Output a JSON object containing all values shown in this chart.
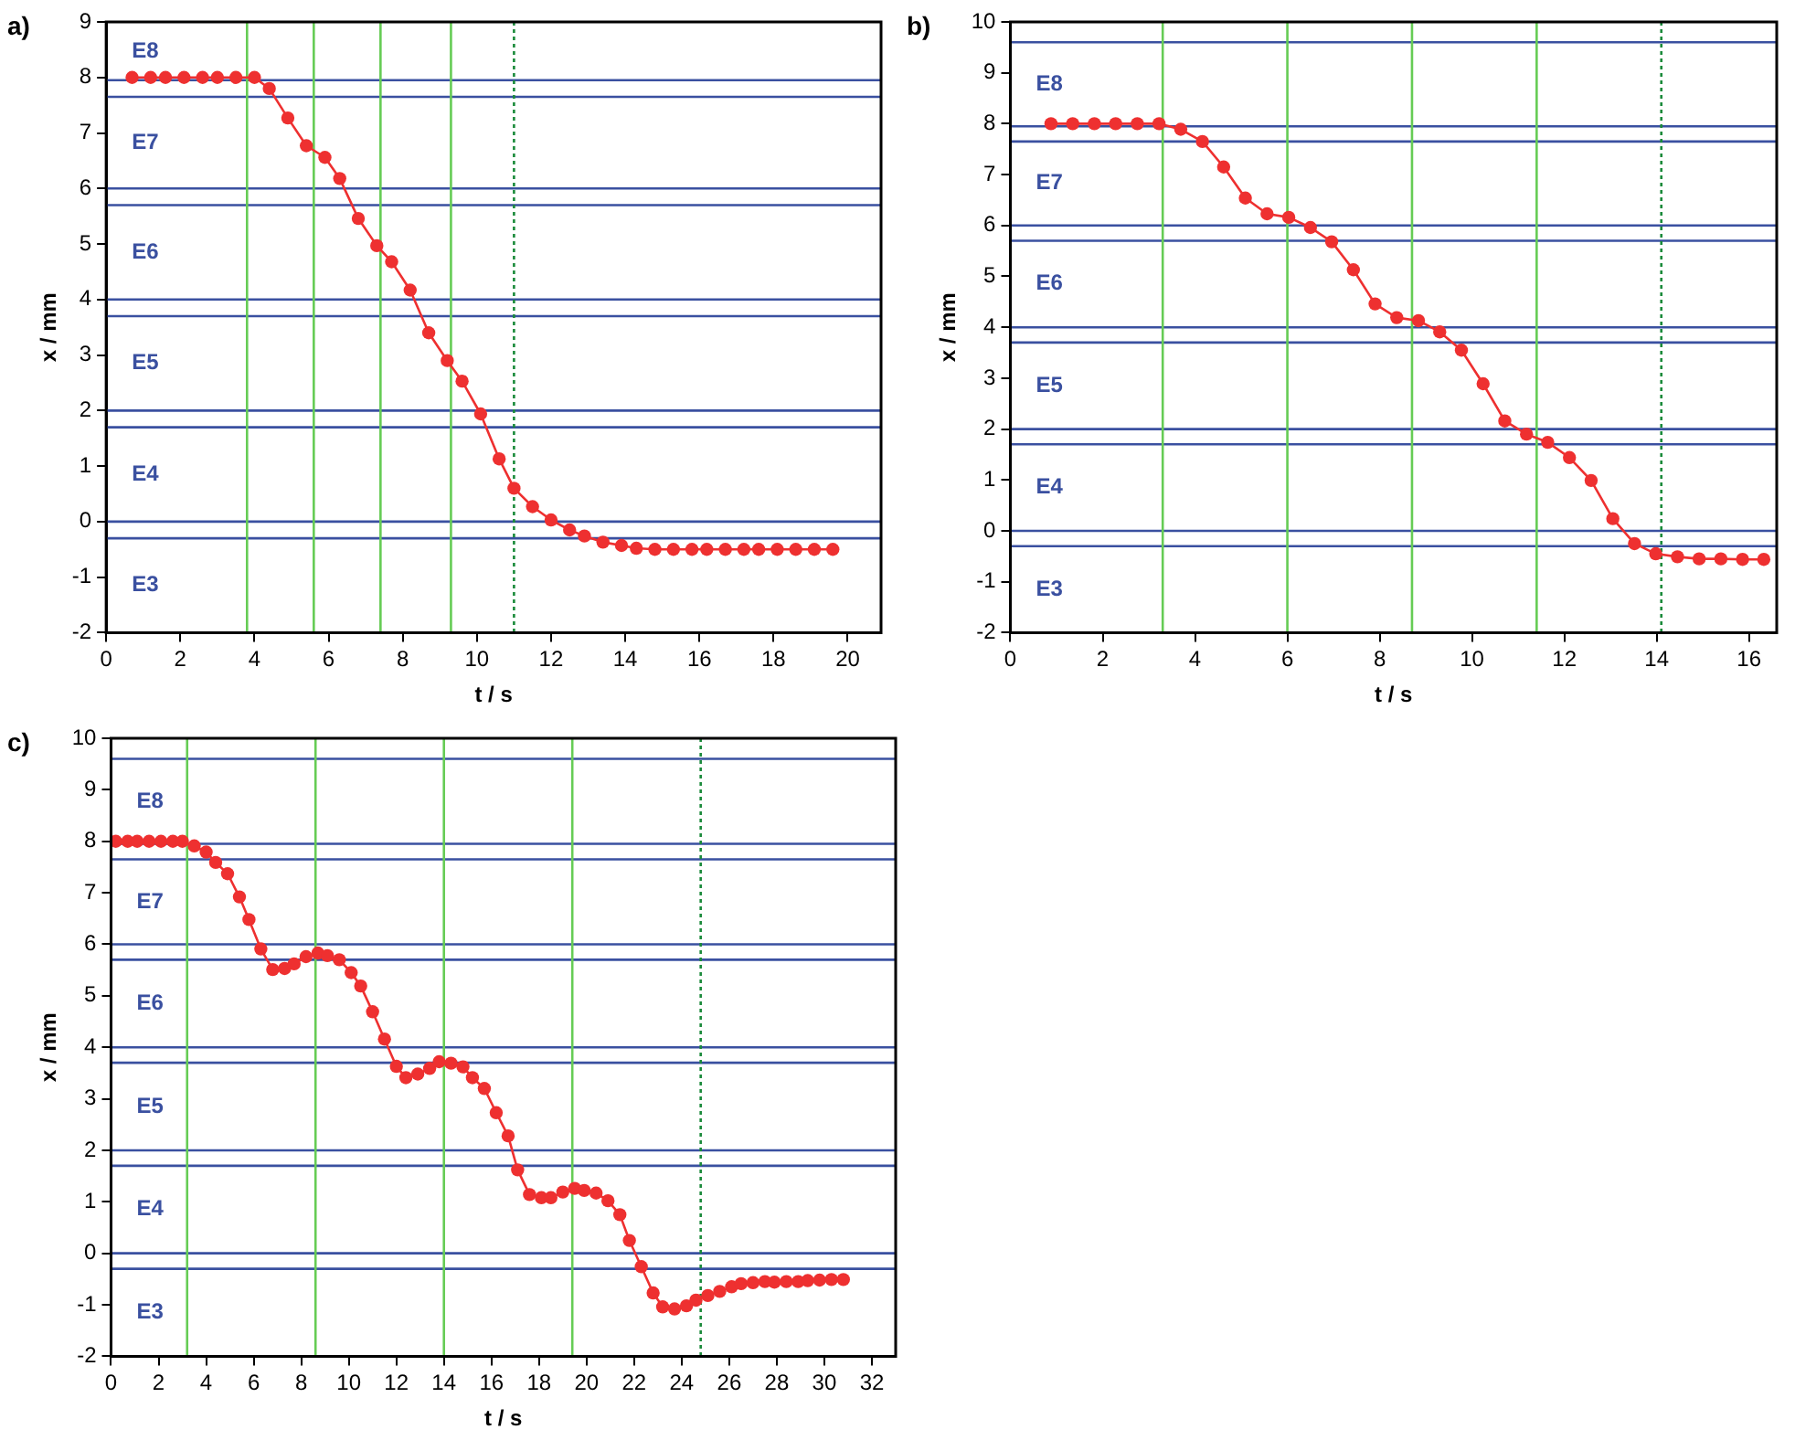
{
  "chart_data": [
    {
      "type": "line",
      "title": "a)",
      "xlabel": "t / s",
      "ylabel": "x / mm",
      "marker": "circle",
      "line_style": "solid",
      "x": [
        0.7,
        1.2,
        1.6,
        2.1,
        2.6,
        3.0,
        3.5,
        4.0,
        4.4,
        4.9,
        5.4,
        5.9,
        6.3,
        6.8,
        7.3,
        7.7,
        8.2,
        8.7,
        9.2,
        9.6,
        10.1,
        10.6,
        11.0,
        11.5,
        12.0,
        12.5,
        12.9,
        13.4,
        13.9,
        14.3,
        14.8,
        15.3,
        15.8,
        16.2,
        16.7,
        17.2,
        17.6,
        18.1,
        18.6,
        19.1,
        19.6
      ],
      "series": [
        {
          "color": "#ee3030",
          "values": [
            8.0,
            8.0,
            8.0,
            8.0,
            8.0,
            8.0,
            8.0,
            8.0,
            7.8,
            7.27,
            6.77,
            6.56,
            6.18,
            5.46,
            4.97,
            4.68,
            4.17,
            3.4,
            2.9,
            2.53,
            1.94,
            1.13,
            0.6,
            0.27,
            0.03,
            -0.15,
            -0.26,
            -0.37,
            -0.43,
            -0.48,
            -0.5,
            -0.5,
            -0.5,
            -0.5,
            -0.5,
            -0.5,
            -0.5,
            -0.5,
            -0.5,
            -0.5,
            -0.5
          ]
        }
      ],
      "xlim": [
        0,
        20.9
      ],
      "xticks": [
        0,
        2,
        4,
        6,
        8,
        10,
        12,
        14,
        16,
        18,
        20
      ],
      "ylim": [
        -2,
        9
      ],
      "yticks": [
        -2,
        -1,
        0,
        1,
        2,
        3,
        4,
        5,
        6,
        7,
        8,
        9
      ],
      "ref_lines": [
        {
          "axis": "y",
          "value": 7.95,
          "color": "#3a50a0"
        },
        {
          "axis": "y",
          "value": 7.65,
          "color": "#3a50a0"
        },
        {
          "axis": "y",
          "value": 6.0,
          "color": "#3a50a0"
        },
        {
          "axis": "y",
          "value": 5.7,
          "color": "#3a50a0"
        },
        {
          "axis": "y",
          "value": 4.0,
          "color": "#3a50a0"
        },
        {
          "axis": "y",
          "value": 3.7,
          "color": "#3a50a0"
        },
        {
          "axis": "y",
          "value": 2.0,
          "color": "#3a50a0"
        },
        {
          "axis": "y",
          "value": 1.7,
          "color": "#3a50a0"
        },
        {
          "axis": "y",
          "value": 0,
          "color": "#3a50a0"
        },
        {
          "axis": "y",
          "value": -0.3,
          "color": "#3a50a0"
        },
        {
          "axis": "x",
          "value": 3.8,
          "color": "#66cc55"
        },
        {
          "axis": "x",
          "value": 5.6,
          "color": "#66cc55"
        },
        {
          "axis": "x",
          "value": 7.4,
          "color": "#66cc55"
        },
        {
          "axis": "x",
          "value": 9.3,
          "color": "#66cc55"
        },
        {
          "axis": "x",
          "value": 11.0,
          "color": "#1a8a3a",
          "line_style": "dotted"
        }
      ],
      "annotations": [
        "E8",
        "E7",
        "E6",
        "E5",
        "E4",
        "E3"
      ]
    },
    {
      "type": "line",
      "title": "b)",
      "xlabel": "t / s",
      "ylabel": "x / mm",
      "marker": "circle",
      "line_style": "solid",
      "x": [
        0.88,
        1.35,
        1.82,
        2.28,
        2.75,
        3.22,
        3.69,
        4.16,
        4.62,
        5.09,
        5.56,
        6.03,
        6.5,
        6.96,
        7.43,
        7.9,
        8.37,
        8.84,
        9.3,
        9.77,
        10.24,
        10.71,
        11.18,
        11.64,
        12.11,
        12.58,
        13.05,
        13.52,
        13.98,
        14.45,
        14.92,
        15.39,
        15.86,
        16.32
      ],
      "series": [
        {
          "color": "#ee3030",
          "values": [
            8.0,
            8.0,
            8.0,
            8.0,
            8.0,
            8.0,
            7.89,
            7.65,
            7.15,
            6.54,
            6.23,
            6.16,
            5.96,
            5.68,
            5.13,
            4.46,
            4.19,
            4.13,
            3.91,
            3.55,
            2.89,
            2.16,
            1.9,
            1.74,
            1.44,
            0.99,
            0.24,
            -0.25,
            -0.45,
            -0.51,
            -0.55,
            -0.55,
            -0.56,
            -0.56
          ]
        }
      ],
      "xlim": [
        0,
        16.6
      ],
      "xticks": [
        0,
        2,
        4,
        6,
        8,
        10,
        12,
        14,
        16
      ],
      "ylim": [
        -2,
        10
      ],
      "yticks": [
        -2,
        -1,
        0,
        1,
        2,
        3,
        4,
        5,
        6,
        7,
        8,
        9,
        10
      ],
      "ref_lines": [
        {
          "axis": "y",
          "value": 9.6,
          "color": "#3a50a0"
        },
        {
          "axis": "y",
          "value": 7.95,
          "color": "#3a50a0"
        },
        {
          "axis": "y",
          "value": 7.65,
          "color": "#3a50a0"
        },
        {
          "axis": "y",
          "value": 6.0,
          "color": "#3a50a0"
        },
        {
          "axis": "y",
          "value": 5.7,
          "color": "#3a50a0"
        },
        {
          "axis": "y",
          "value": 4.0,
          "color": "#3a50a0"
        },
        {
          "axis": "y",
          "value": 3.7,
          "color": "#3a50a0"
        },
        {
          "axis": "y",
          "value": 2.0,
          "color": "#3a50a0"
        },
        {
          "axis": "y",
          "value": 1.7,
          "color": "#3a50a0"
        },
        {
          "axis": "y",
          "value": 0,
          "color": "#3a50a0"
        },
        {
          "axis": "y",
          "value": -0.3,
          "color": "#3a50a0"
        },
        {
          "axis": "x",
          "value": 3.3,
          "color": "#66cc55"
        },
        {
          "axis": "x",
          "value": 6.0,
          "color": "#66cc55"
        },
        {
          "axis": "x",
          "value": 8.7,
          "color": "#66cc55"
        },
        {
          "axis": "x",
          "value": 11.4,
          "color": "#66cc55"
        },
        {
          "axis": "x",
          "value": 14.1,
          "color": "#1a8a3a",
          "line_style": "dotted"
        }
      ],
      "annotations": [
        "E8",
        "E7",
        "E6",
        "E5",
        "E4",
        "E3"
      ]
    },
    {
      "type": "line",
      "title": "c)",
      "xlabel": "t / s",
      "ylabel": "x / mm",
      "marker": "circle",
      "line_style": "solid",
      "x": [
        0.2,
        0.7,
        1.1,
        1.6,
        2.1,
        2.6,
        3.0,
        3.5,
        4.0,
        4.4,
        4.9,
        5.4,
        5.8,
        6.3,
        6.8,
        7.3,
        7.7,
        8.2,
        8.7,
        9.1,
        9.6,
        10.1,
        10.5,
        11.0,
        11.5,
        12.0,
        12.4,
        12.9,
        13.4,
        13.8,
        14.3,
        14.8,
        15.2,
        15.7,
        16.2,
        16.7,
        17.1,
        17.6,
        18.1,
        18.5,
        19.0,
        19.5,
        19.9,
        20.4,
        20.9,
        21.4,
        21.8,
        22.3,
        22.8,
        23.2,
        23.7,
        24.2,
        24.6,
        25.1,
        25.6,
        26.1,
        26.5,
        27.0,
        27.5,
        27.9,
        28.4,
        28.9,
        29.3,
        29.8,
        30.3,
        30.8
      ],
      "series": [
        {
          "color": "#ee3030",
          "values": [
            8.0,
            8.0,
            8.0,
            8.0,
            8.0,
            8.0,
            8.0,
            7.91,
            7.79,
            7.59,
            7.37,
            6.92,
            6.48,
            5.91,
            5.51,
            5.53,
            5.62,
            5.76,
            5.83,
            5.78,
            5.7,
            5.45,
            5.19,
            4.69,
            4.16,
            3.63,
            3.41,
            3.48,
            3.59,
            3.72,
            3.69,
            3.62,
            3.41,
            3.2,
            2.73,
            2.28,
            1.62,
            1.14,
            1.08,
            1.08,
            1.19,
            1.26,
            1.22,
            1.17,
            1.02,
            0.75,
            0.25,
            -0.26,
            -0.77,
            -1.04,
            -1.08,
            -1.02,
            -0.91,
            -0.82,
            -0.74,
            -0.65,
            -0.59,
            -0.57,
            -0.55,
            -0.56,
            -0.55,
            -0.55,
            -0.53,
            -0.52,
            -0.51,
            -0.51
          ]
        }
      ],
      "xlim": [
        0,
        33
      ],
      "xticks": [
        0,
        2,
        4,
        6,
        8,
        10,
        12,
        14,
        16,
        18,
        20,
        22,
        24,
        26,
        28,
        30,
        32
      ],
      "ylim": [
        -2,
        10
      ],
      "yticks": [
        -2,
        -1,
        0,
        1,
        2,
        3,
        4,
        5,
        6,
        7,
        8,
        9,
        10
      ],
      "ref_lines": [
        {
          "axis": "y",
          "value": 9.6,
          "color": "#3a50a0"
        },
        {
          "axis": "y",
          "value": 7.95,
          "color": "#3a50a0"
        },
        {
          "axis": "y",
          "value": 7.65,
          "color": "#3a50a0"
        },
        {
          "axis": "y",
          "value": 6.0,
          "color": "#3a50a0"
        },
        {
          "axis": "y",
          "value": 5.7,
          "color": "#3a50a0"
        },
        {
          "axis": "y",
          "value": 4.0,
          "color": "#3a50a0"
        },
        {
          "axis": "y",
          "value": 3.7,
          "color": "#3a50a0"
        },
        {
          "axis": "y",
          "value": 2.0,
          "color": "#3a50a0"
        },
        {
          "axis": "y",
          "value": 1.7,
          "color": "#3a50a0"
        },
        {
          "axis": "y",
          "value": 0,
          "color": "#3a50a0"
        },
        {
          "axis": "y",
          "value": -0.3,
          "color": "#3a50a0"
        },
        {
          "axis": "x",
          "value": 3.2,
          "color": "#66cc55"
        },
        {
          "axis": "x",
          "value": 8.6,
          "color": "#66cc55"
        },
        {
          "axis": "x",
          "value": 14.0,
          "color": "#66cc55"
        },
        {
          "axis": "x",
          "value": 19.4,
          "color": "#66cc55"
        },
        {
          "axis": "x",
          "value": 24.8,
          "color": "#1a8a3a",
          "line_style": "dotted"
        }
      ],
      "annotations": [
        "E8",
        "E7",
        "E6",
        "E5",
        "E4",
        "E3"
      ]
    }
  ]
}
